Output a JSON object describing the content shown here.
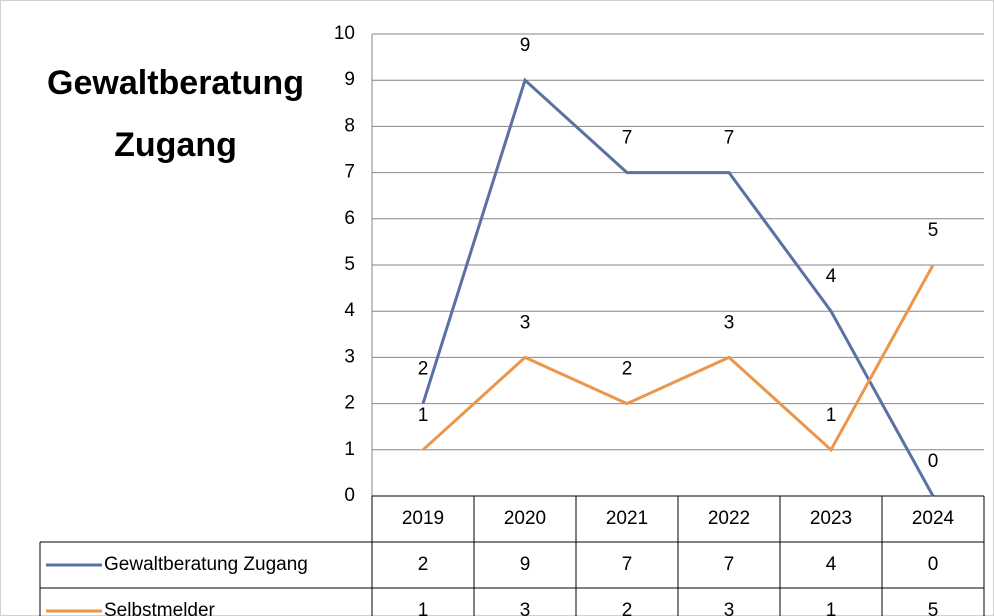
{
  "chart_data": {
    "type": "line",
    "title": "Gewaltberatung Zugang",
    "categories": [
      "2019",
      "2020",
      "2021",
      "2022",
      "2023",
      "2024"
    ],
    "series": [
      {
        "name": "Gewaltberatung Zugang",
        "color": "#5b70a3",
        "values": [
          2,
          9,
          7,
          7,
          4,
          0
        ]
      },
      {
        "name": "Selbstmelder",
        "color": "#eb9649",
        "values": [
          1,
          3,
          2,
          3,
          1,
          5
        ]
      }
    ],
    "ylim": [
      0,
      10
    ],
    "yticks": [
      0,
      1,
      2,
      3,
      4,
      5,
      6,
      7,
      8,
      9,
      10
    ],
    "grid": true,
    "data_table": true
  }
}
